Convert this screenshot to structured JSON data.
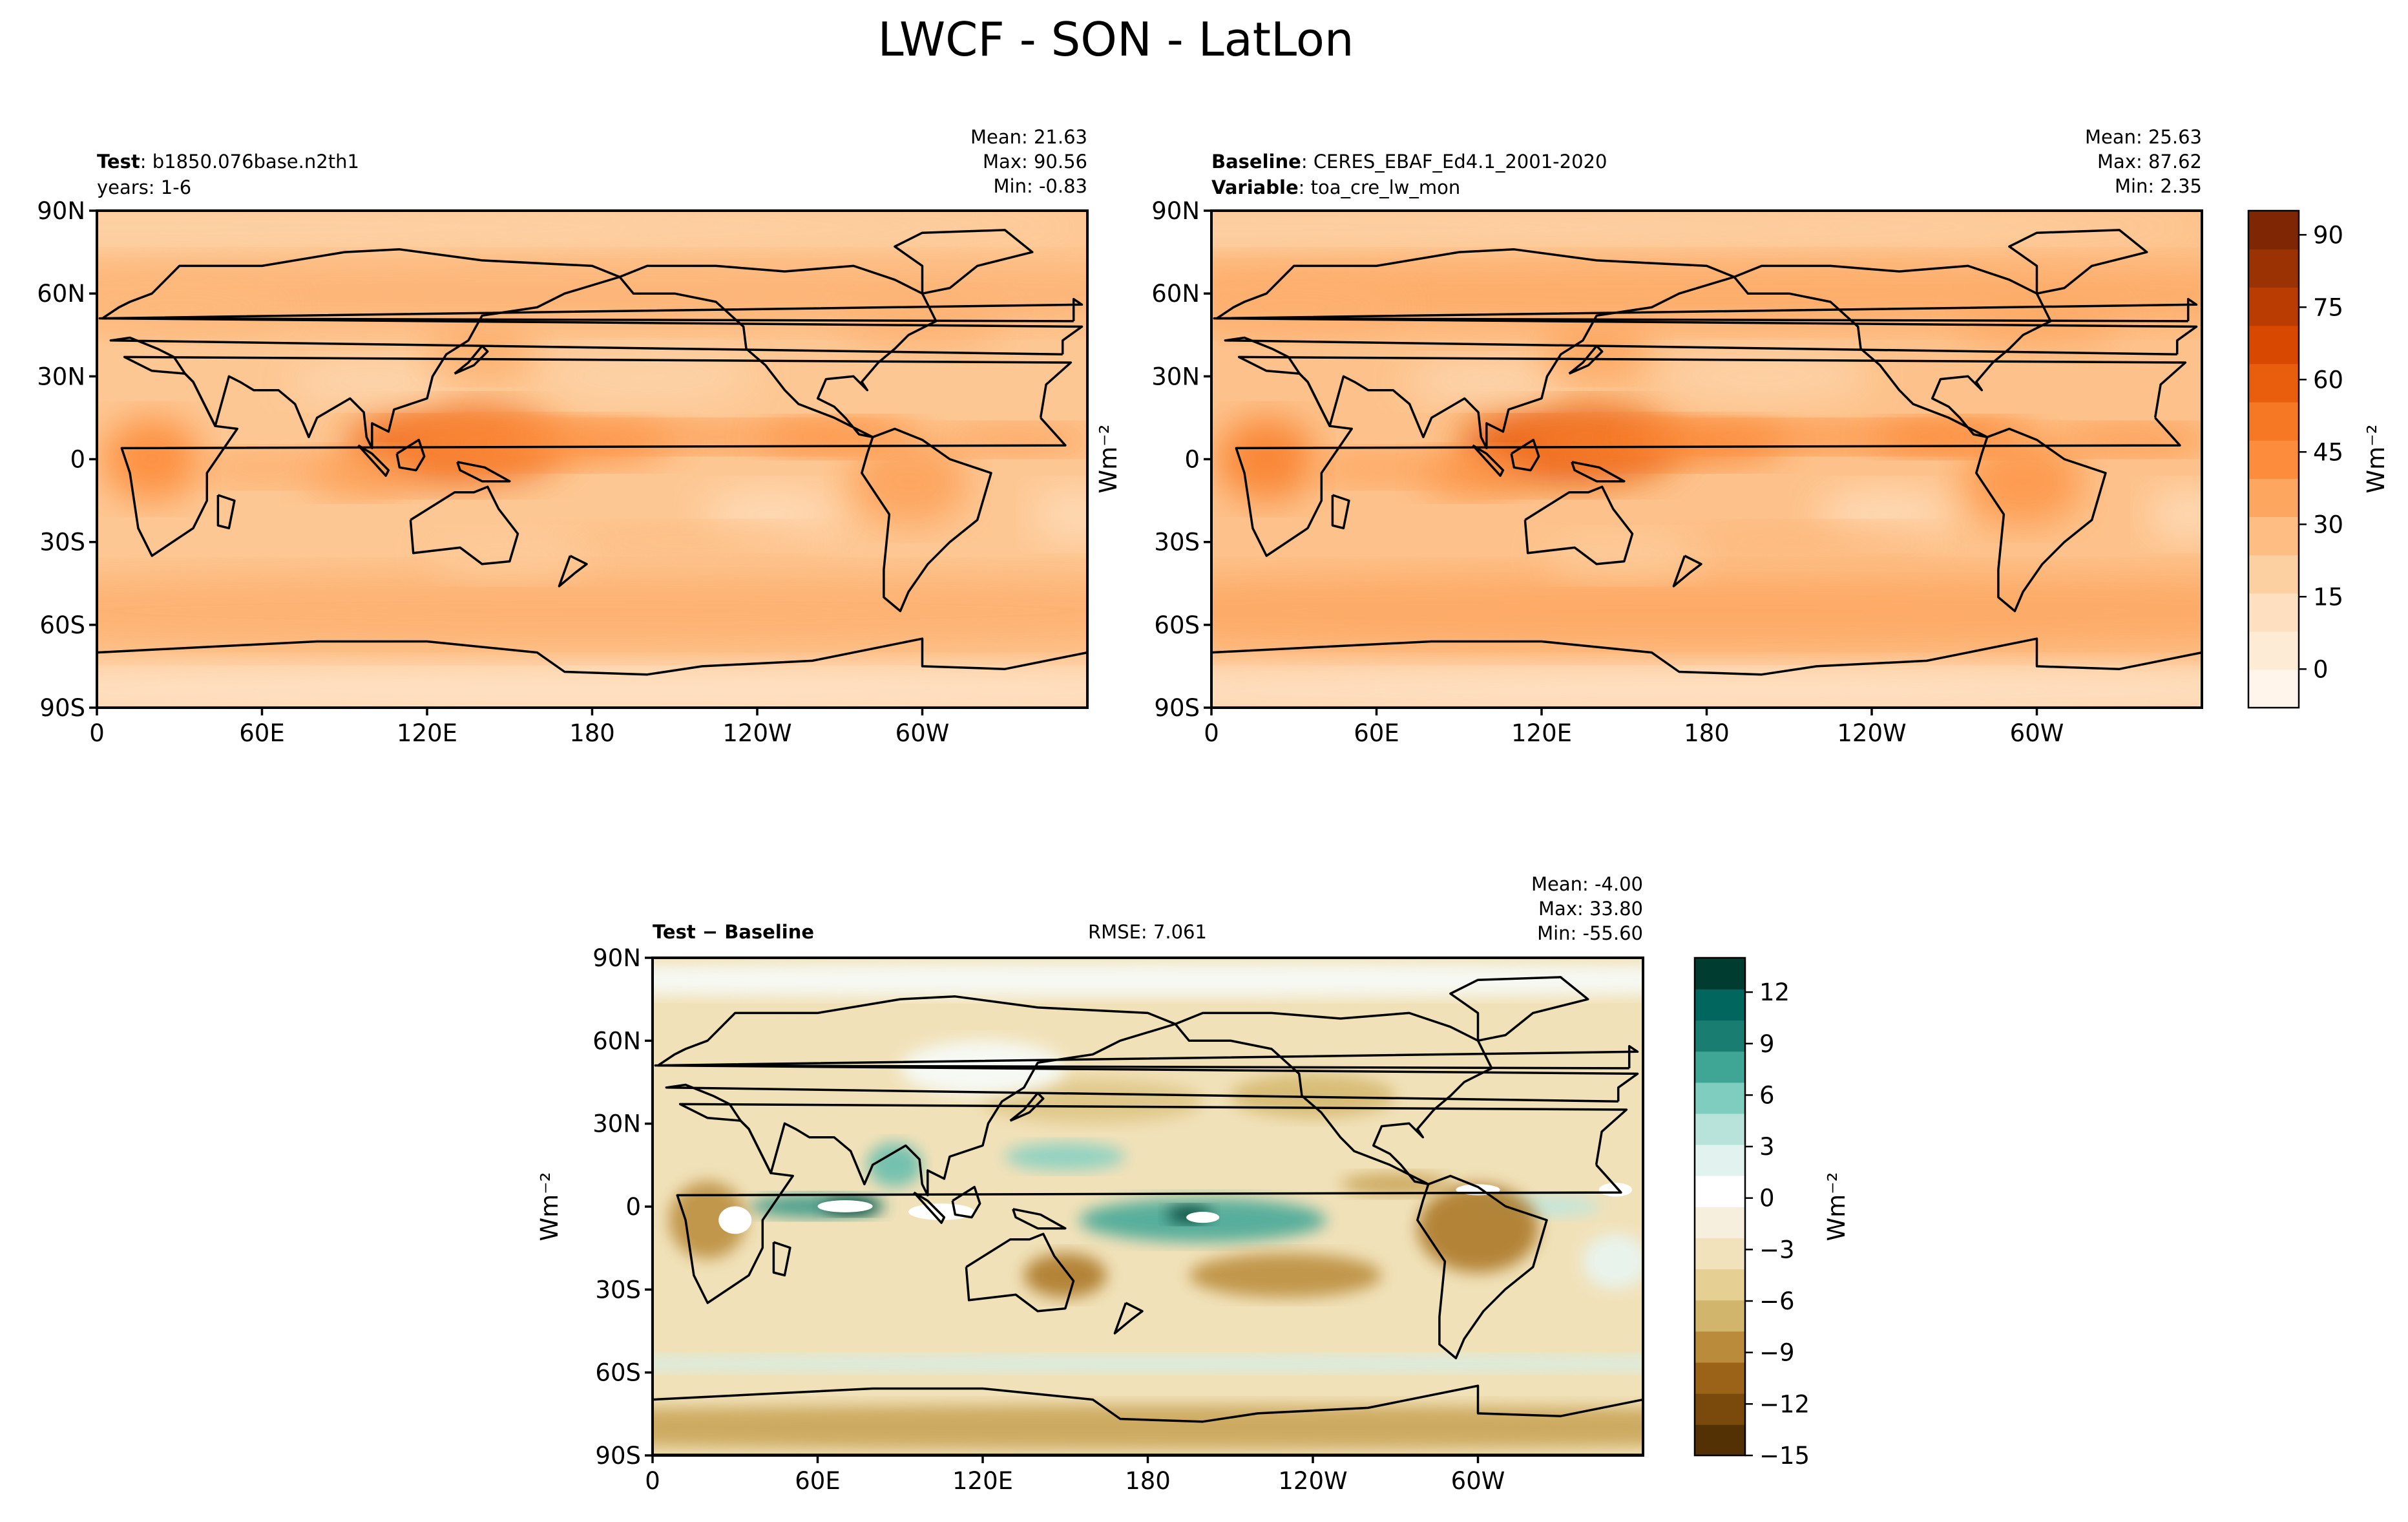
{
  "figure": {
    "title": "LWCF - SON - LatLon"
  },
  "panels": [
    {
      "id": "test",
      "header_left_bold": "Test",
      "header_left_text": "b1850.076base.n2th1",
      "header_left_line2": "years: 1-6",
      "header_left_line2_bold": "",
      "header_center": "",
      "stats": [
        "Mean: 21.63",
        "Max: 90.56",
        "Min: -0.83"
      ]
    },
    {
      "id": "baseline",
      "header_left_bold": "Baseline",
      "header_left_text": "CERES_EBAF_Ed4.1_2001-2020",
      "header_left_line2": "toa_cre_lw_mon",
      "header_left_line2_bold": "Variable",
      "header_center": "",
      "stats": [
        "Mean: 25.63",
        "Max: 87.62",
        "Min:  2.35"
      ]
    },
    {
      "id": "diff",
      "header_left_bold": "Test − Baseline",
      "header_left_text": "",
      "header_left_line2": "",
      "header_left_line2_bold": "",
      "header_center": "RMSE: 7.061",
      "stats": [
        "Mean: -4.00",
        "Max: 33.80",
        "Min: -55.60"
      ]
    }
  ],
  "axes_labels": {
    "lat_ticks": [
      "90N",
      "60N",
      "30N",
      "0",
      "30S",
      "60S",
      "90S"
    ],
    "lon_ticks": [
      "0",
      "60E",
      "120E",
      "180",
      "120W",
      "60W"
    ],
    "units_label": "Wm⁻²"
  },
  "chart_data": [
    {
      "type": "heatmap",
      "title": "",
      "panel": "Test",
      "variable": "LWCF",
      "season": "SON",
      "projection": "PlateCarree, central longitude 180",
      "lat_range": [
        -90,
        90
      ],
      "lon_range": [
        0,
        360
      ],
      "colormap": "Oranges",
      "color_range": [
        -8,
        95
      ],
      "stats": {
        "mean": 21.63,
        "max": 90.56,
        "min": -0.83
      },
      "features": [
        {
          "region": "Western Pacific warm pool / Maritime Continent",
          "value_approx": 55
        },
        {
          "region": "ITCZ central Pacific",
          "value_approx": 40
        },
        {
          "region": "Central Africa",
          "value_approx": 45
        },
        {
          "region": "South America (Amazon)",
          "value_approx": 35
        },
        {
          "region": "Southern Ocean storm track",
          "value_approx": 30
        },
        {
          "region": "Subtropical eastern oceans",
          "value_approx": 10
        },
        {
          "region": "Antarctica",
          "value_approx": 5
        }
      ]
    },
    {
      "type": "heatmap",
      "title": "",
      "panel": "Baseline",
      "variable": "toa_cre_lw_mon",
      "season": "SON",
      "projection": "PlateCarree, central longitude 180",
      "lat_range": [
        -90,
        90
      ],
      "lon_range": [
        0,
        360
      ],
      "colormap": "Oranges",
      "color_range": [
        -8,
        95
      ],
      "stats": {
        "mean": 25.63,
        "max": 87.62,
        "min": 2.35
      },
      "features": [
        {
          "region": "Western Pacific warm pool / Maritime Continent",
          "value_approx": 60
        },
        {
          "region": "ITCZ central Pacific",
          "value_approx": 45
        },
        {
          "region": "Central Africa",
          "value_approx": 50
        },
        {
          "region": "South America (Amazon)",
          "value_approx": 45
        },
        {
          "region": "Southern Ocean storm track",
          "value_approx": 32
        },
        {
          "region": "Subtropical eastern oceans",
          "value_approx": 12
        },
        {
          "region": "Antarctica",
          "value_approx": 8
        }
      ]
    },
    {
      "type": "heatmap",
      "title": "",
      "panel": "Test − Baseline",
      "season": "SON",
      "projection": "PlateCarree, central longitude 180",
      "lat_range": [
        -90,
        90
      ],
      "lon_range": [
        0,
        360
      ],
      "colormap": "BrBG",
      "color_range": [
        -15,
        14
      ],
      "stats": {
        "mean": -4.0,
        "max": 33.8,
        "min": -55.6,
        "rmse": 7.061
      },
      "features": [
        {
          "region": "Indian Ocean equatorial",
          "value_approx": 9
        },
        {
          "region": "Central Pacific south of equator",
          "value_approx": 10
        },
        {
          "region": "Bay of Bengal",
          "value_approx": 6
        },
        {
          "region": "South America",
          "value_approx": -9
        },
        {
          "region": "Africa",
          "value_approx": -8
        },
        {
          "region": "Southern Ocean ~55S",
          "value_approx": 4
        },
        {
          "region": "Antarctic margin",
          "value_approx": -10
        },
        {
          "region": "Subtropical Pacific",
          "value_approx": -6
        }
      ]
    }
  ],
  "colorbars": [
    {
      "id": "abs",
      "ticks": [
        90,
        75,
        60,
        45,
        30,
        15,
        0
      ],
      "range": [
        -8,
        95
      ],
      "colors": [
        "#fff5eb",
        "#feebd6",
        "#fee0c1",
        "#fdd0a2",
        "#fdbd83",
        "#fda660",
        "#fd8d3c",
        "#f67824",
        "#e95e0d",
        "#d94801",
        "#bb3c02",
        "#9a3203",
        "#7f2704"
      ],
      "label": "Wm⁻²"
    },
    {
      "id": "diff",
      "ticks": [
        12,
        9,
        6,
        3,
        0,
        -3,
        -6,
        -9,
        -12,
        -15
      ],
      "tick_labels": [
        "12",
        "9",
        "6",
        "3",
        "0",
        "−3",
        "−6",
        "−9",
        "−12",
        "−15"
      ],
      "range": [
        -15,
        14
      ],
      "colors": [
        "#543005",
        "#7a4a0c",
        "#9b6318",
        "#b98b3a",
        "#d2b56c",
        "#e5cf93",
        "#f2e2bb",
        "#f6efde",
        "#ffffff",
        "#e2f3ef",
        "#b8e3da",
        "#7fcdbe",
        "#3fa595",
        "#1a7d72",
        "#01665e",
        "#003c30"
      ],
      "label": "Wm⁻²"
    }
  ]
}
